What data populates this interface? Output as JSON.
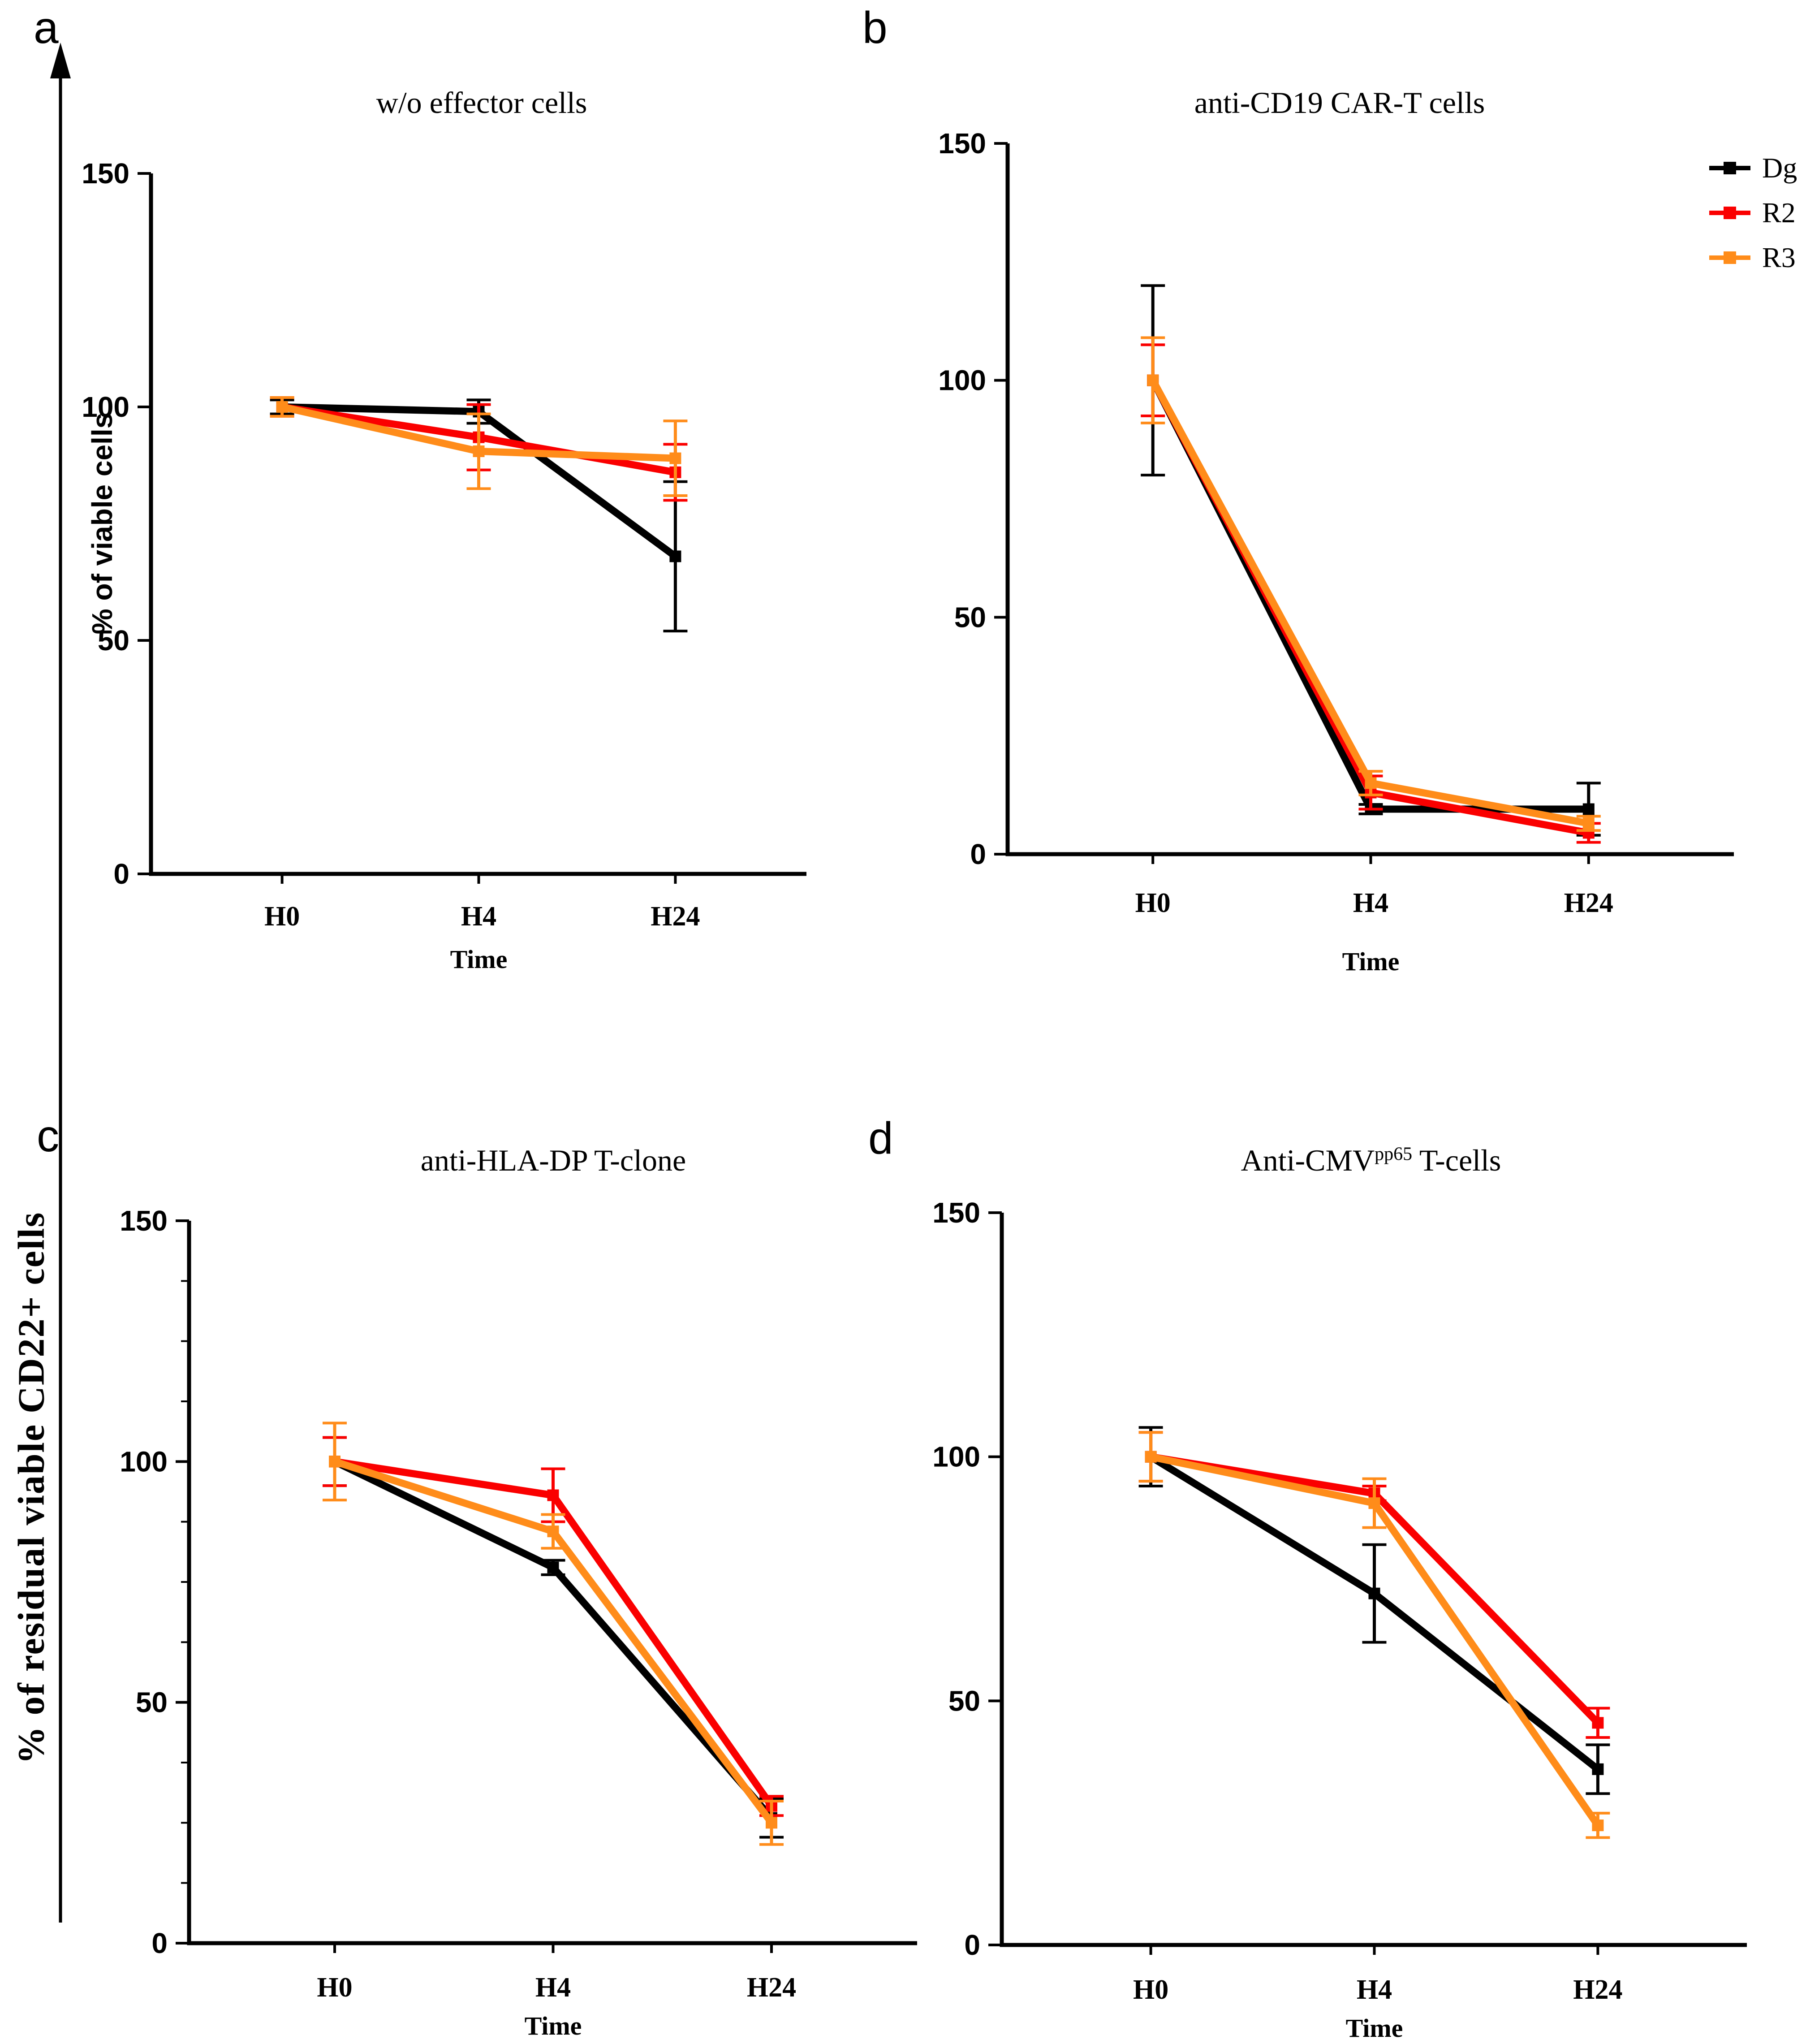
{
  "figure": {
    "shared_ylabel": "% of residual viable CD22+ cells",
    "background_color": "#ffffff",
    "accent_colors": {
      "dg": "#000000",
      "r2": "#fa0000",
      "r3": "#ff8c1a"
    }
  },
  "legend": {
    "position": "outside-top-right-of-panel-b",
    "items": [
      {
        "label": "Dg",
        "color": "#000000"
      },
      {
        "label": "R2",
        "color": "#fa0000"
      },
      {
        "label": "R3",
        "color": "#ff8c1a"
      }
    ]
  },
  "chart_data": [
    {
      "panel_letter": "a",
      "type": "line",
      "title": "w/o effector cells",
      "xlabel": "Time",
      "ylabel": "% of viable cells",
      "x_categories": [
        "H0",
        "H4",
        "H24"
      ],
      "ylim": [
        0,
        150
      ],
      "yticks": [
        0,
        50,
        100,
        150
      ],
      "minor_yticks": false,
      "grid": false,
      "series": [
        {
          "name": "Dg",
          "color": "#000000",
          "values": [
            100,
            99,
            68
          ],
          "errors": [
            1.5,
            2.5,
            16
          ]
        },
        {
          "name": "R2",
          "color": "#fa0000",
          "values": [
            100,
            93.5,
            86
          ],
          "errors": [
            2,
            7,
            6
          ]
        },
        {
          "name": "R3",
          "color": "#ff8c1a",
          "values": [
            100,
            90.5,
            89
          ],
          "errors": [
            2,
            8,
            8
          ]
        }
      ]
    },
    {
      "panel_letter": "b",
      "type": "line",
      "title": "anti-CD19 CAR-T cells",
      "xlabel": "Time",
      "x_categories": [
        "H0",
        "H4",
        "H24"
      ],
      "ylim": [
        0,
        150
      ],
      "yticks": [
        0,
        50,
        100,
        150
      ],
      "minor_yticks": false,
      "grid": false,
      "series": [
        {
          "name": "Dg",
          "color": "#000000",
          "values": [
            100,
            9.5,
            9.5
          ],
          "errors": [
            20,
            1,
            5.5
          ]
        },
        {
          "name": "R2",
          "color": "#fa0000",
          "values": [
            100,
            13,
            4.5
          ],
          "errors": [
            7.5,
            3.5,
            2
          ]
        },
        {
          "name": "R3",
          "color": "#ff8c1a",
          "values": [
            100,
            15,
            6.5
          ],
          "errors": [
            9,
            2.5,
            1.5
          ]
        }
      ]
    },
    {
      "panel_letter": "c",
      "type": "line",
      "title": "anti-HLA-DP T-clone",
      "xlabel": "Time",
      "x_categories": [
        "H0",
        "H4",
        "H24"
      ],
      "ylim": [
        0,
        150
      ],
      "yticks": [
        0,
        50,
        100,
        150
      ],
      "minor_yticks": true,
      "grid": false,
      "series": [
        {
          "name": "Dg",
          "color": "#000000",
          "values": [
            100,
            78,
            26
          ],
          "errors": [
            5,
            1.5,
            4
          ]
        },
        {
          "name": "R2",
          "color": "#fa0000",
          "values": [
            100,
            93,
            28.5
          ],
          "errors": [
            5,
            5.5,
            2
          ]
        },
        {
          "name": "R3",
          "color": "#ff8c1a",
          "values": [
            100,
            85.5,
            25
          ],
          "errors": [
            8,
            3.5,
            4.5
          ]
        }
      ]
    },
    {
      "panel_letter": "d",
      "type": "line",
      "title_prefix": "Anti-CMV",
      "title_sup": "pp65",
      "title_suffix": " T-cells",
      "xlabel": "Time",
      "x_categories": [
        "H0",
        "H4",
        "H24"
      ],
      "ylim": [
        0,
        150
      ],
      "yticks": [
        0,
        50,
        100,
        150
      ],
      "minor_yticks": false,
      "grid": false,
      "series": [
        {
          "name": "Dg",
          "color": "#000000",
          "values": [
            100,
            72,
            36
          ],
          "errors": [
            6,
            10,
            5
          ]
        },
        {
          "name": "R2",
          "color": "#fa0000",
          "values": [
            100,
            92.5,
            45.5
          ],
          "errors": [
            5,
            1.5,
            3
          ]
        },
        {
          "name": "R3",
          "color": "#ff8c1a",
          "values": [
            100,
            90.5,
            24.5
          ],
          "errors": [
            5,
            5,
            2.5
          ]
        }
      ]
    }
  ]
}
